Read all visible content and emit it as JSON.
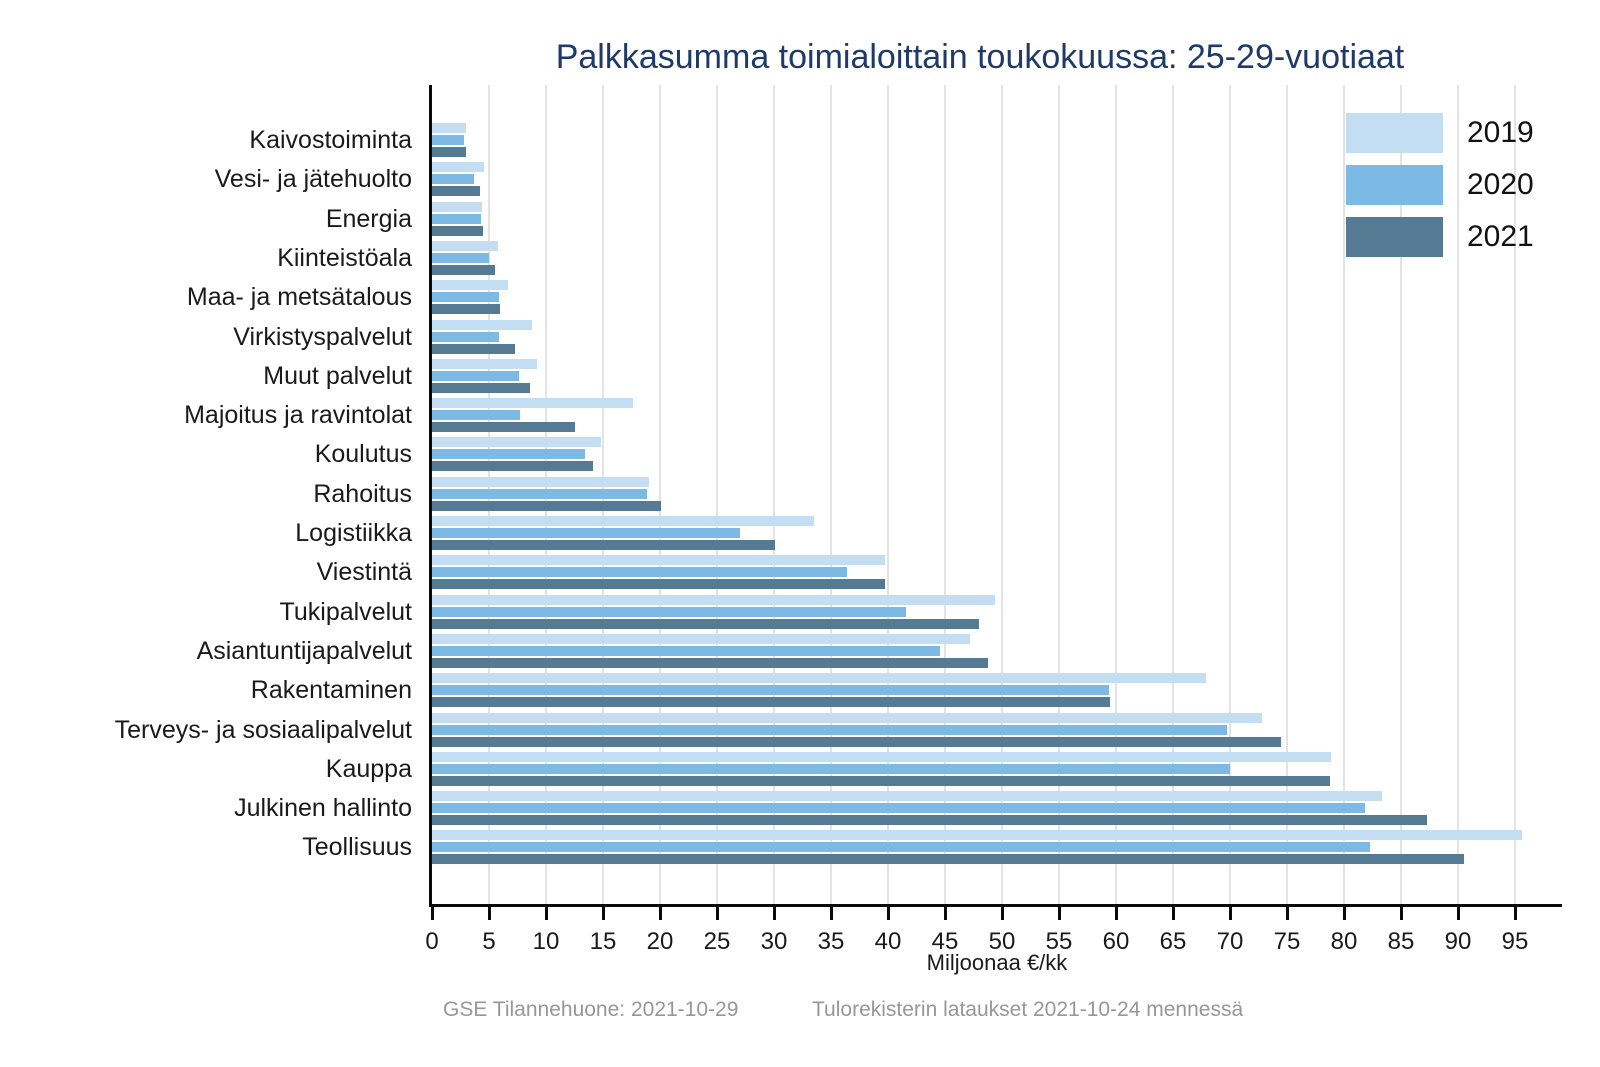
{
  "title": "Palkkasumma toimialoittain toukokuussa: 25-29-vuotiaat",
  "chart_data": {
    "type": "bar",
    "orientation": "horizontal",
    "title": "Palkkasumma toimialoittain toukokuussa: 25-29-vuotiaat",
    "xlabel": "Miljoonaa €/kk",
    "ylabel": "",
    "xlim": [
      0,
      99
    ],
    "xticks": [
      0,
      5,
      10,
      15,
      20,
      25,
      30,
      35,
      40,
      45,
      50,
      55,
      60,
      65,
      70,
      75,
      80,
      85,
      90,
      95
    ],
    "grid": true,
    "legend_position": "upper right",
    "categories": [
      "Kaivostoiminta",
      "Vesi- ja jätehuolto",
      "Energia",
      "Kiinteistöala",
      "Maa- ja metsätalous",
      "Virkistyspalvelut",
      "Muut palvelut",
      "Majoitus ja ravintolat",
      "Koulutus",
      "Rahoitus",
      "Logistiikka",
      "Viestintä",
      "Tukipalvelut",
      "Asiantuntijapalvelut",
      "Rakentaminen",
      "Terveys- ja sosiaalipalvelut",
      "Kauppa",
      "Julkinen hallinto",
      "Teollisuus"
    ],
    "series": [
      {
        "name": "2019",
        "color": "#c3def2",
        "values": [
          3.0,
          4.6,
          4.4,
          5.8,
          6.7,
          8.8,
          9.2,
          17.6,
          14.8,
          19.0,
          33.5,
          39.7,
          49.4,
          47.2,
          67.9,
          72.8,
          78.9,
          83.3,
          95.6
        ]
      },
      {
        "name": "2020",
        "color": "#7cb9e5",
        "values": [
          2.8,
          3.7,
          4.3,
          5.0,
          5.9,
          5.9,
          7.6,
          7.7,
          13.4,
          18.9,
          27.0,
          36.4,
          41.6,
          44.6,
          59.4,
          69.7,
          70.0,
          81.8,
          82.3
        ]
      },
      {
        "name": "2021",
        "color": "#557a93",
        "values": [
          3.0,
          4.2,
          4.5,
          5.5,
          6.0,
          7.3,
          8.6,
          12.5,
          14.1,
          20.1,
          30.1,
          39.7,
          48.0,
          48.8,
          59.5,
          74.5,
          78.8,
          87.3,
          90.5
        ]
      }
    ]
  },
  "legend": [
    {
      "label": "2019",
      "color": "#c3def2"
    },
    {
      "label": "2020",
      "color": "#7cb9e5"
    },
    {
      "label": "2021",
      "color": "#557a93"
    }
  ],
  "footer": {
    "left": "GSE Tilannehuone: 2021-10-29",
    "right": "Tulorekisterin lataukset 2021-10-24 mennessä"
  }
}
